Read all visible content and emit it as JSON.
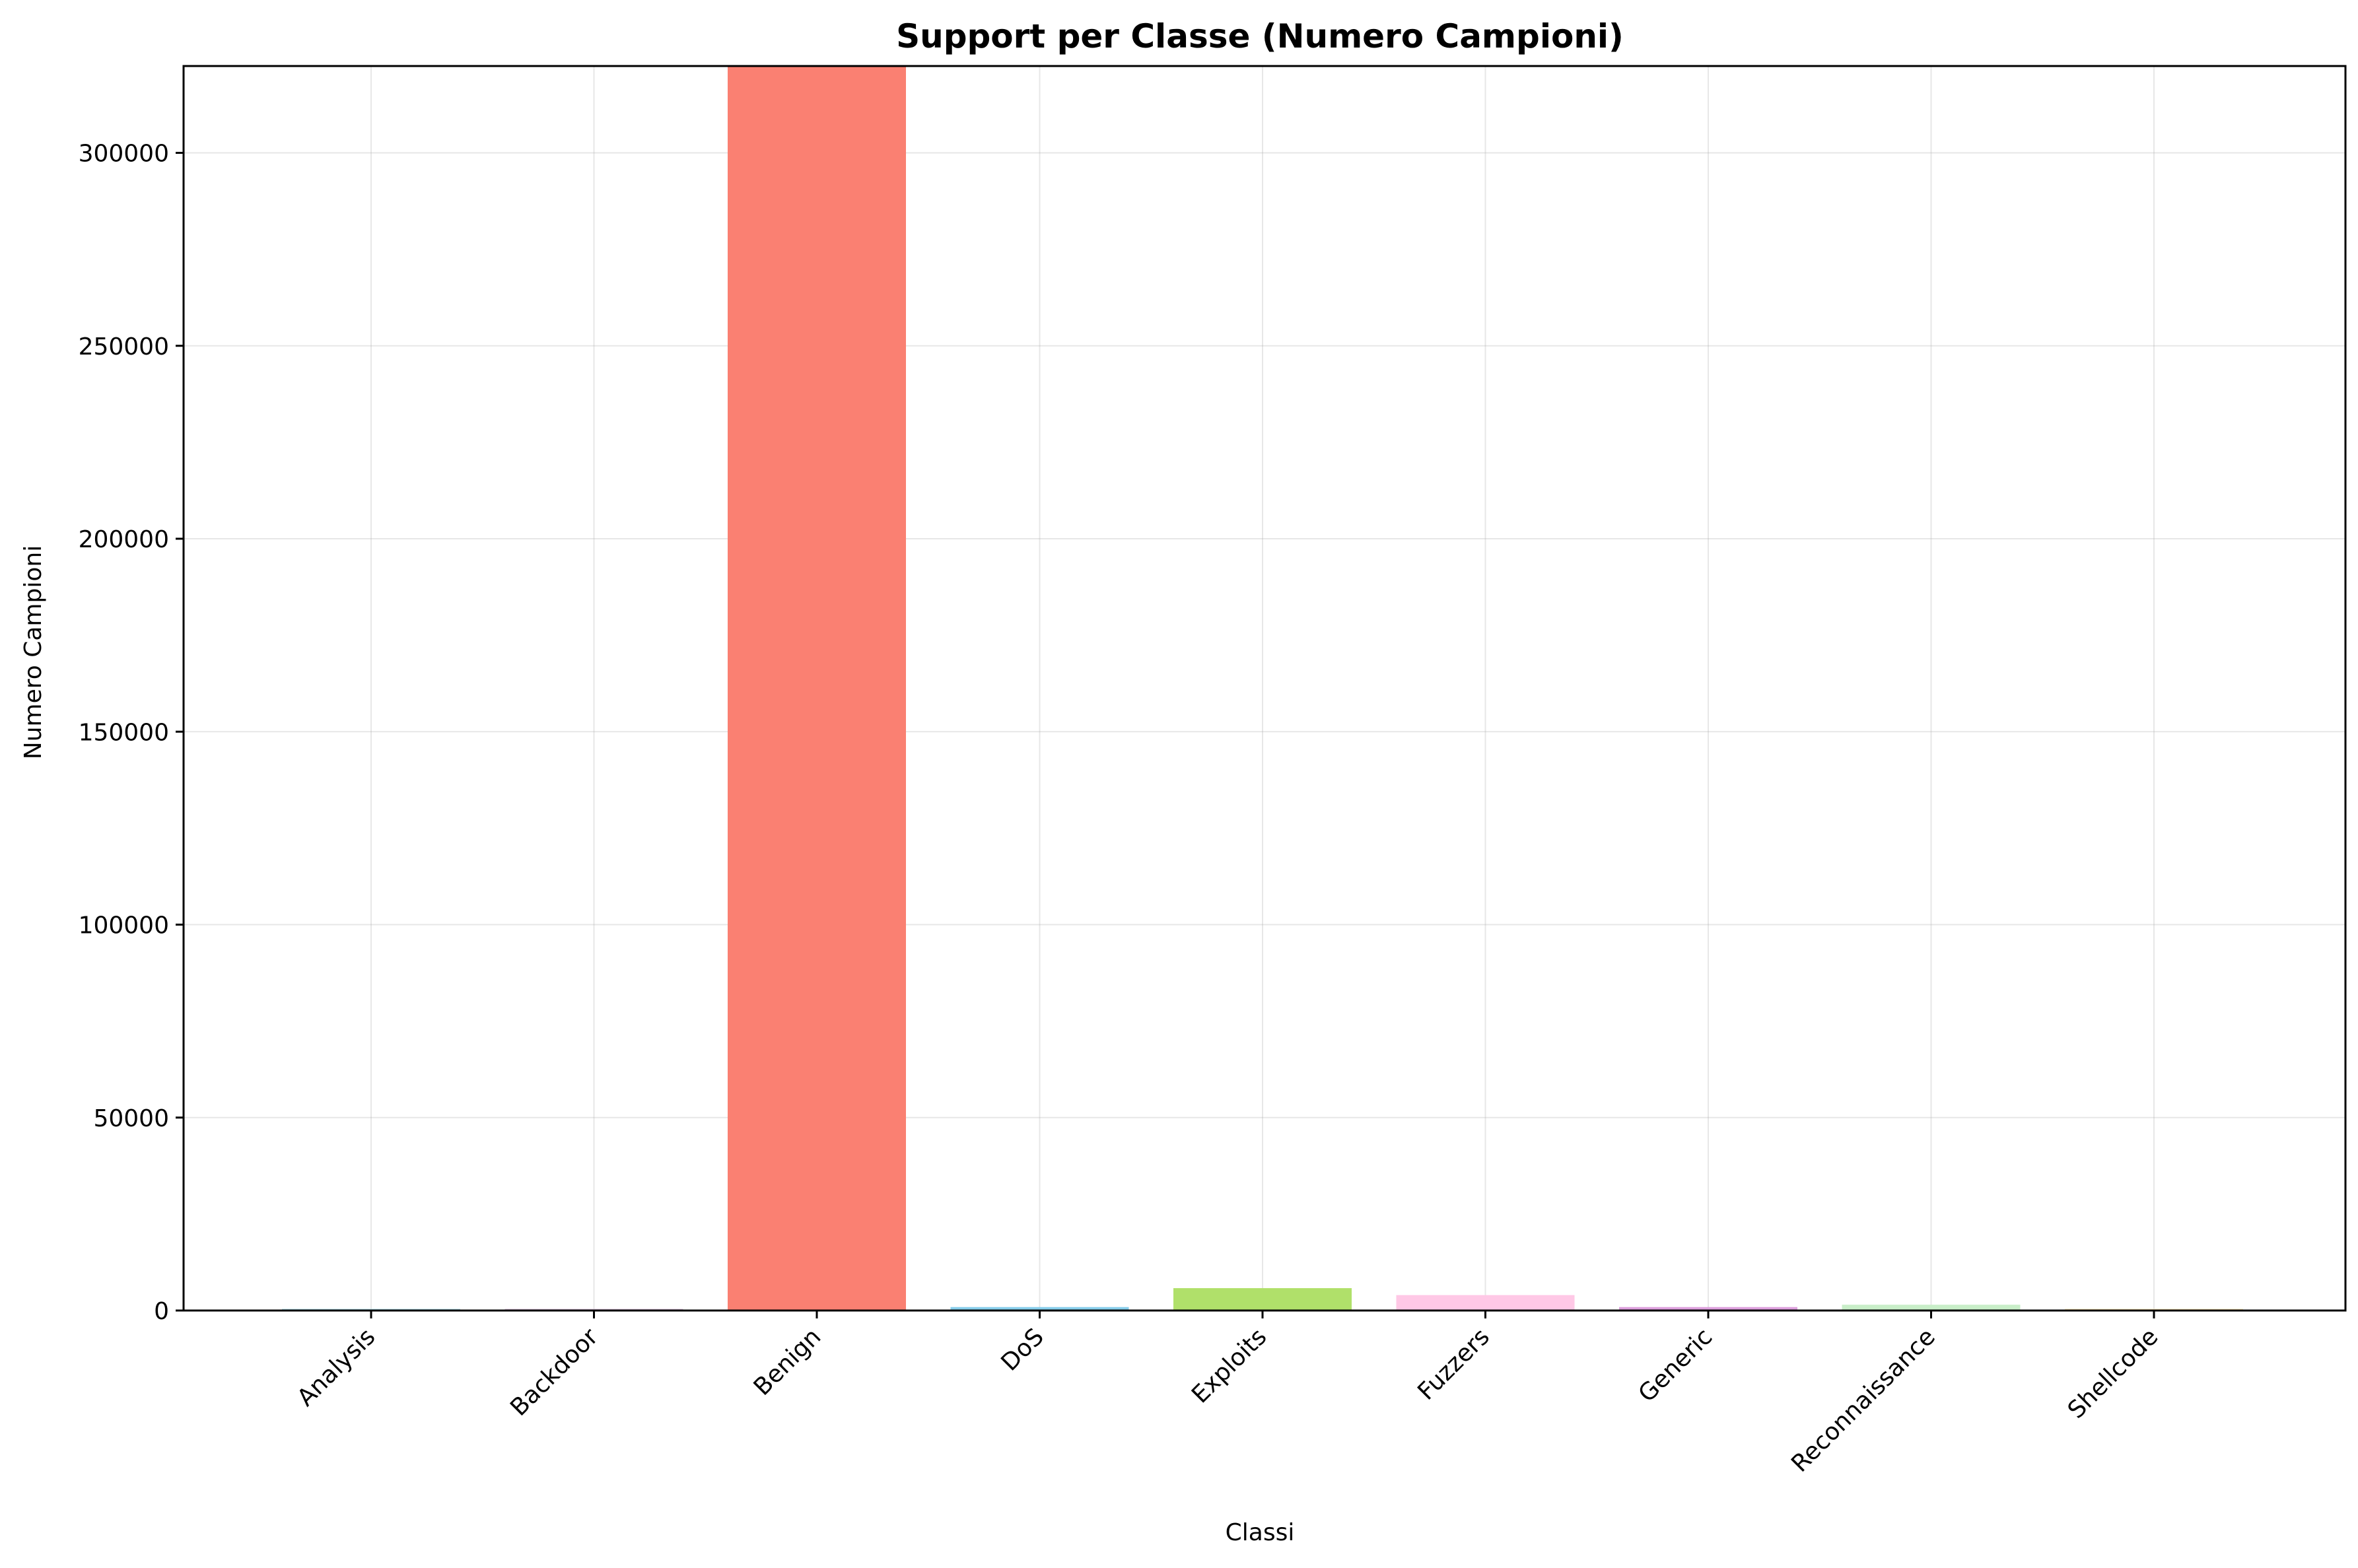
{
  "chart_data": {
    "type": "bar",
    "title": "Support per Classe (Numero Campioni)",
    "xlabel": "Classi",
    "ylabel": "Numero Campioni",
    "categories": [
      "Analysis",
      "Backdoor",
      "Benign",
      "DoS",
      "Exploits",
      "Fuzzers",
      "Generic",
      "Reconnaissance",
      "Shellcode"
    ],
    "values": [
      100,
      120,
      322500,
      900,
      5800,
      4000,
      900,
      1500,
      80
    ],
    "colors": [
      "#add8e6",
      "#d8bfd8",
      "#fa8072",
      "#87ceeb",
      "#b0e06a",
      "#ffc8e6",
      "#dda0dd",
      "#c8eec8",
      "#ffe4b5"
    ],
    "ylim": [
      0,
      322500
    ],
    "yticks": [
      0,
      50000,
      100000,
      150000,
      200000,
      250000,
      300000
    ],
    "ytick_labels": [
      "0",
      "50000",
      "100000",
      "150000",
      "200000",
      "250000",
      "300000"
    ],
    "grid": true
  }
}
